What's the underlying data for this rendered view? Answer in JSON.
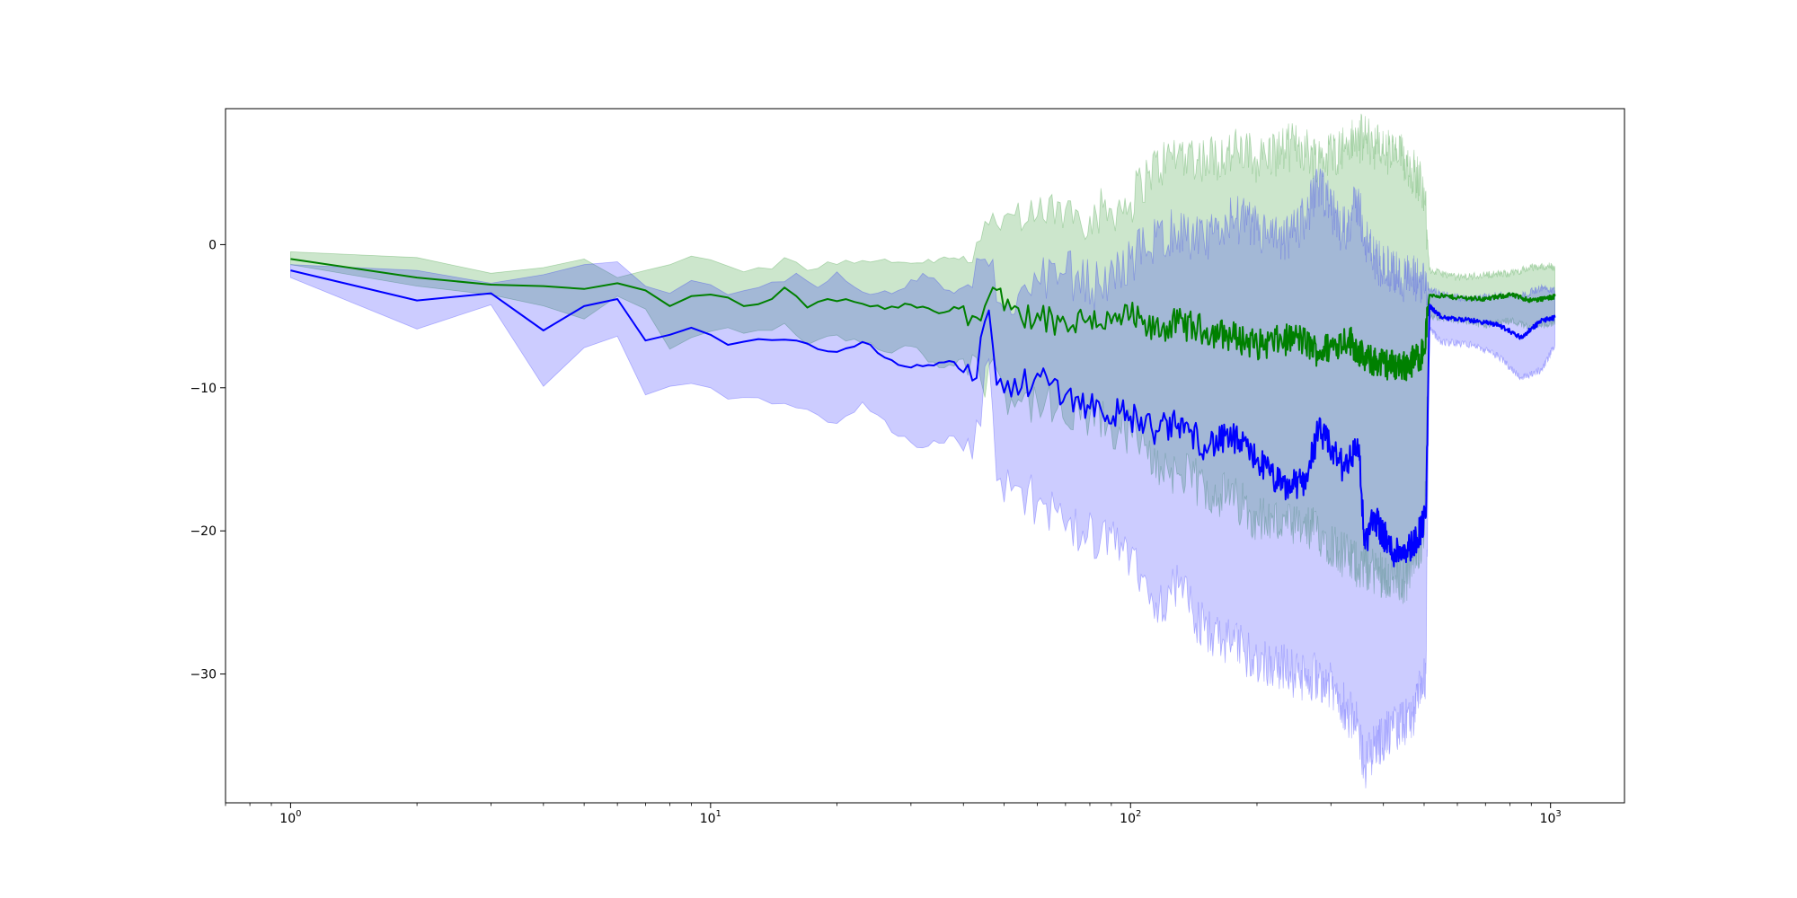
{
  "chart_data": {
    "type": "line",
    "title": "",
    "xlabel": "",
    "ylabel": "",
    "x_scale": "log",
    "xlim": [
      0.7,
      1500
    ],
    "ylim": [
      -39,
      9.5
    ],
    "grid": false,
    "legend": "none",
    "x_ticks": [
      {
        "value": 1,
        "base": "10",
        "exp": "0"
      },
      {
        "value": 10,
        "base": "10",
        "exp": "1"
      },
      {
        "value": 100,
        "base": "10",
        "exp": "2"
      },
      {
        "value": 1000,
        "base": "10",
        "exp": "3"
      }
    ],
    "y_ticks": [
      {
        "value": 0,
        "label": "0"
      },
      {
        "value": -10,
        "label": "−10"
      },
      {
        "value": -20,
        "label": "−20"
      },
      {
        "value": -30,
        "label": "−30"
      }
    ],
    "colors": {
      "series_a": "#008000",
      "series_b": "#0000ff"
    },
    "series": [
      {
        "color": "#008000",
        "band_opacity": 0.2,
        "points": [
          [
            1,
            -1.0,
            -0.5,
            -1.4
          ],
          [
            2,
            -2.3,
            -0.9,
            -2.9
          ],
          [
            3,
            -2.8,
            -2.0,
            -3.5
          ],
          [
            5,
            -3.1,
            -1.0,
            -5.2
          ],
          [
            6,
            -2.7,
            -2.3,
            -3.6
          ],
          [
            7,
            -3.2,
            -1.8,
            -4.5
          ],
          [
            8,
            -4.3,
            -1.4,
            -7.3
          ],
          [
            9,
            -3.6,
            -0.8,
            -6.5
          ],
          [
            11,
            -3.7,
            -1.5,
            -5.8
          ],
          [
            12,
            -4.3,
            -1.9,
            -6.2
          ],
          [
            14,
            -3.8,
            -1.7,
            -6.0
          ],
          [
            15,
            -3.0,
            -0.9,
            -5.5
          ],
          [
            17,
            -4.4,
            -1.8,
            -7.0
          ],
          [
            19,
            -3.8,
            -1.2,
            -6.4
          ],
          [
            22,
            -4.0,
            -1.3,
            -6.6
          ],
          [
            26,
            -4.5,
            -1.0,
            -7.5
          ],
          [
            30,
            -4.2,
            -1.3,
            -7.1
          ],
          [
            35,
            -4.8,
            -1.0,
            -8.6
          ],
          [
            40,
            -4.3,
            -0.8,
            -8.0
          ],
          [
            44,
            -5.3,
            0.3,
            -9.5
          ],
          [
            47,
            -3.0,
            2.2,
            -8.0
          ],
          [
            50,
            -4.6,
            2.0,
            -10.0
          ],
          [
            55,
            -5.2,
            1.0,
            -11.0
          ],
          [
            60,
            -4.8,
            2.0,
            -11.0
          ],
          [
            70,
            -5.5,
            2.5,
            -12.5
          ],
          [
            80,
            -5.0,
            2.0,
            -12.0
          ],
          [
            90,
            -5.5,
            2.5,
            -13.0
          ],
          [
            100,
            -5.0,
            3.0,
            -13.0
          ],
          [
            110,
            -6.0,
            5.0,
            -15.0
          ],
          [
            130,
            -5.5,
            6.5,
            -16.0
          ],
          [
            150,
            -6.0,
            6.0,
            -17.0
          ],
          [
            180,
            -6.5,
            6.5,
            -18.0
          ],
          [
            200,
            -7.0,
            6.0,
            -19.0
          ],
          [
            250,
            -6.5,
            7.0,
            -20.0
          ],
          [
            280,
            -7.5,
            6.0,
            -20.0
          ],
          [
            330,
            -6.5,
            7.0,
            -22.0
          ],
          [
            360,
            -8.0,
            7.5,
            -22.5
          ],
          [
            400,
            -8.3,
            6.5,
            -23.0
          ],
          [
            450,
            -8.5,
            6.0,
            -23.5
          ],
          [
            500,
            -7.5,
            4.0,
            -20.0
          ],
          [
            515,
            -3.5,
            -1.8,
            -5.0
          ],
          [
            600,
            -3.7,
            -2.3,
            -5.3
          ],
          [
            700,
            -3.8,
            -2.1,
            -5.6
          ],
          [
            800,
            -3.5,
            -2.0,
            -5.3
          ],
          [
            900,
            -3.9,
            -1.6,
            -5.8
          ],
          [
            1000,
            -3.7,
            -1.5,
            -5.5
          ],
          [
            1024,
            -3.6,
            -1.7,
            -5.4
          ]
        ]
      },
      {
        "color": "#0000ff",
        "band_opacity": 0.2,
        "points": [
          [
            1,
            -1.8,
            -1.4,
            -2.3
          ],
          [
            2,
            -3.9,
            -1.8,
            -5.9
          ],
          [
            3,
            -3.4,
            -2.7,
            -4.2
          ],
          [
            4,
            -6.0,
            -2.1,
            -9.9
          ],
          [
            5,
            -4.3,
            -1.4,
            -7.2
          ],
          [
            6,
            -3.8,
            -1.2,
            -6.4
          ],
          [
            7,
            -6.7,
            -2.9,
            -10.5
          ],
          [
            8,
            -6.3,
            -3.4,
            -9.9
          ],
          [
            9,
            -5.8,
            -2.5,
            -9.7
          ],
          [
            10,
            -6.3,
            -2.8,
            -10.0
          ],
          [
            11,
            -7.0,
            -3.5,
            -10.8
          ],
          [
            13,
            -6.6,
            -3.0,
            -10.7
          ],
          [
            16,
            -6.7,
            -2.0,
            -11.4
          ],
          [
            18,
            -7.3,
            -3.0,
            -11.9
          ],
          [
            20,
            -7.5,
            -1.9,
            -12.5
          ],
          [
            23,
            -6.8,
            -3.3,
            -11.0
          ],
          [
            28,
            -8.4,
            -3.2,
            -13.4
          ],
          [
            32,
            -8.5,
            -2.0,
            -14.2
          ],
          [
            38,
            -8.2,
            -3.4,
            -13.4
          ],
          [
            42,
            -9.5,
            -3.0,
            -15.0
          ],
          [
            46,
            -4.6,
            -1.5,
            -8.0
          ],
          [
            48,
            -9.8,
            -4.0,
            -16.5
          ],
          [
            55,
            -10.0,
            -3.0,
            -17.0
          ],
          [
            60,
            -9.0,
            -2.5,
            -18.0
          ],
          [
            70,
            -10.5,
            -2.0,
            -20.0
          ],
          [
            85,
            -11.5,
            -3.0,
            -20.5
          ],
          [
            100,
            -12.0,
            -1.0,
            -22.0
          ],
          [
            115,
            -13.0,
            0.5,
            -25.0
          ],
          [
            130,
            -12.5,
            1.0,
            -24.0
          ],
          [
            150,
            -14.0,
            0.0,
            -27.0
          ],
          [
            175,
            -13.5,
            2.0,
            -28.0
          ],
          [
            200,
            -15.0,
            1.0,
            -29.0
          ],
          [
            230,
            -17.0,
            0.0,
            -29.5
          ],
          [
            260,
            -16.5,
            2.0,
            -30.5
          ],
          [
            280,
            -13.0,
            4.0,
            -30.0
          ],
          [
            320,
            -15.5,
            1.0,
            -32.0
          ],
          [
            350,
            -14.0,
            3.0,
            -34.0
          ],
          [
            360,
            -21.0,
            0.5,
            -36.5
          ],
          [
            380,
            -19.0,
            -1.0,
            -35.0
          ],
          [
            420,
            -21.5,
            -2.0,
            -34.0
          ],
          [
            470,
            -21.0,
            -2.5,
            -33.0
          ],
          [
            505,
            -19.0,
            -2.5,
            -30.0
          ],
          [
            515,
            -4.3,
            -3.1,
            -5.9
          ],
          [
            550,
            -5.1,
            -3.5,
            -6.8
          ],
          [
            650,
            -5.3,
            -3.8,
            -7.0
          ],
          [
            750,
            -5.6,
            -3.5,
            -7.8
          ],
          [
            850,
            -6.5,
            -3.6,
            -9.3
          ],
          [
            950,
            -5.3,
            -3.0,
            -8.8
          ],
          [
            1024,
            -5.1,
            -3.2,
            -7.0
          ]
        ]
      }
    ]
  }
}
